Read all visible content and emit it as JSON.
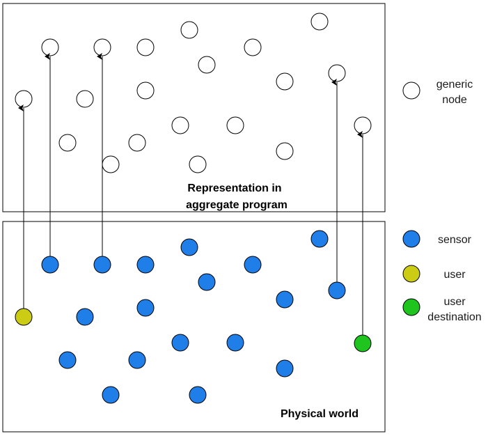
{
  "colors": {
    "generic": "#ffffff",
    "sensor": "#1f7ee8",
    "user": "#cccc14",
    "destination": "#1fc41f",
    "stroke": "#000000"
  },
  "top_box": {
    "title_line1": "Representation in",
    "title_line2": "aggregate program"
  },
  "bottom_box": {
    "title": "Physical world"
  },
  "legend": {
    "generic_line1": "generic",
    "generic_line2": "node",
    "sensor": "sensor",
    "user": "user",
    "destination_line1": "user",
    "destination_line2": "destination"
  }
}
